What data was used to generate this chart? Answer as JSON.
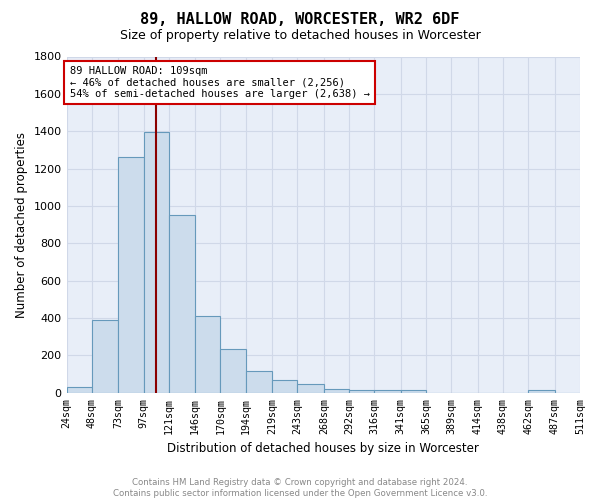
{
  "title": "89, HALLOW ROAD, WORCESTER, WR2 6DF",
  "subtitle": "Size of property relative to detached houses in Worcester",
  "xlabel": "Distribution of detached houses by size in Worcester",
  "ylabel": "Number of detached properties",
  "bar_color": "#ccdcec",
  "bar_edge_color": "#6699bb",
  "grid_color": "#d0d8e8",
  "background_color": "#e8eef8",
  "vline_x": 109,
  "vline_color": "#8b0000",
  "bin_edges": [
    24,
    48,
    73,
    97,
    121,
    146,
    170,
    194,
    219,
    243,
    268,
    292,
    316,
    341,
    365,
    389,
    414,
    438,
    462,
    487,
    511
  ],
  "bin_labels": [
    "24sqm",
    "48sqm",
    "73sqm",
    "97sqm",
    "121sqm",
    "146sqm",
    "170sqm",
    "194sqm",
    "219sqm",
    "243sqm",
    "268sqm",
    "292sqm",
    "316sqm",
    "341sqm",
    "365sqm",
    "389sqm",
    "414sqm",
    "438sqm",
    "462sqm",
    "487sqm",
    "511sqm"
  ],
  "counts": [
    30,
    390,
    1260,
    1395,
    950,
    410,
    235,
    115,
    70,
    45,
    20,
    15,
    15,
    15,
    0,
    0,
    0,
    0,
    15,
    0
  ],
  "annotation_line1": "89 HALLOW ROAD: 109sqm",
  "annotation_line2": "← 46% of detached houses are smaller (2,256)",
  "annotation_line3": "54% of semi-detached houses are larger (2,638) →",
  "annotation_box_color": "#ffffff",
  "annotation_box_edge_color": "#cc0000",
  "footer_text": "Contains HM Land Registry data © Crown copyright and database right 2024.\nContains public sector information licensed under the Open Government Licence v3.0.",
  "ylim": [
    0,
    1800
  ],
  "yticks": [
    0,
    200,
    400,
    600,
    800,
    1000,
    1200,
    1400,
    1600,
    1800
  ]
}
